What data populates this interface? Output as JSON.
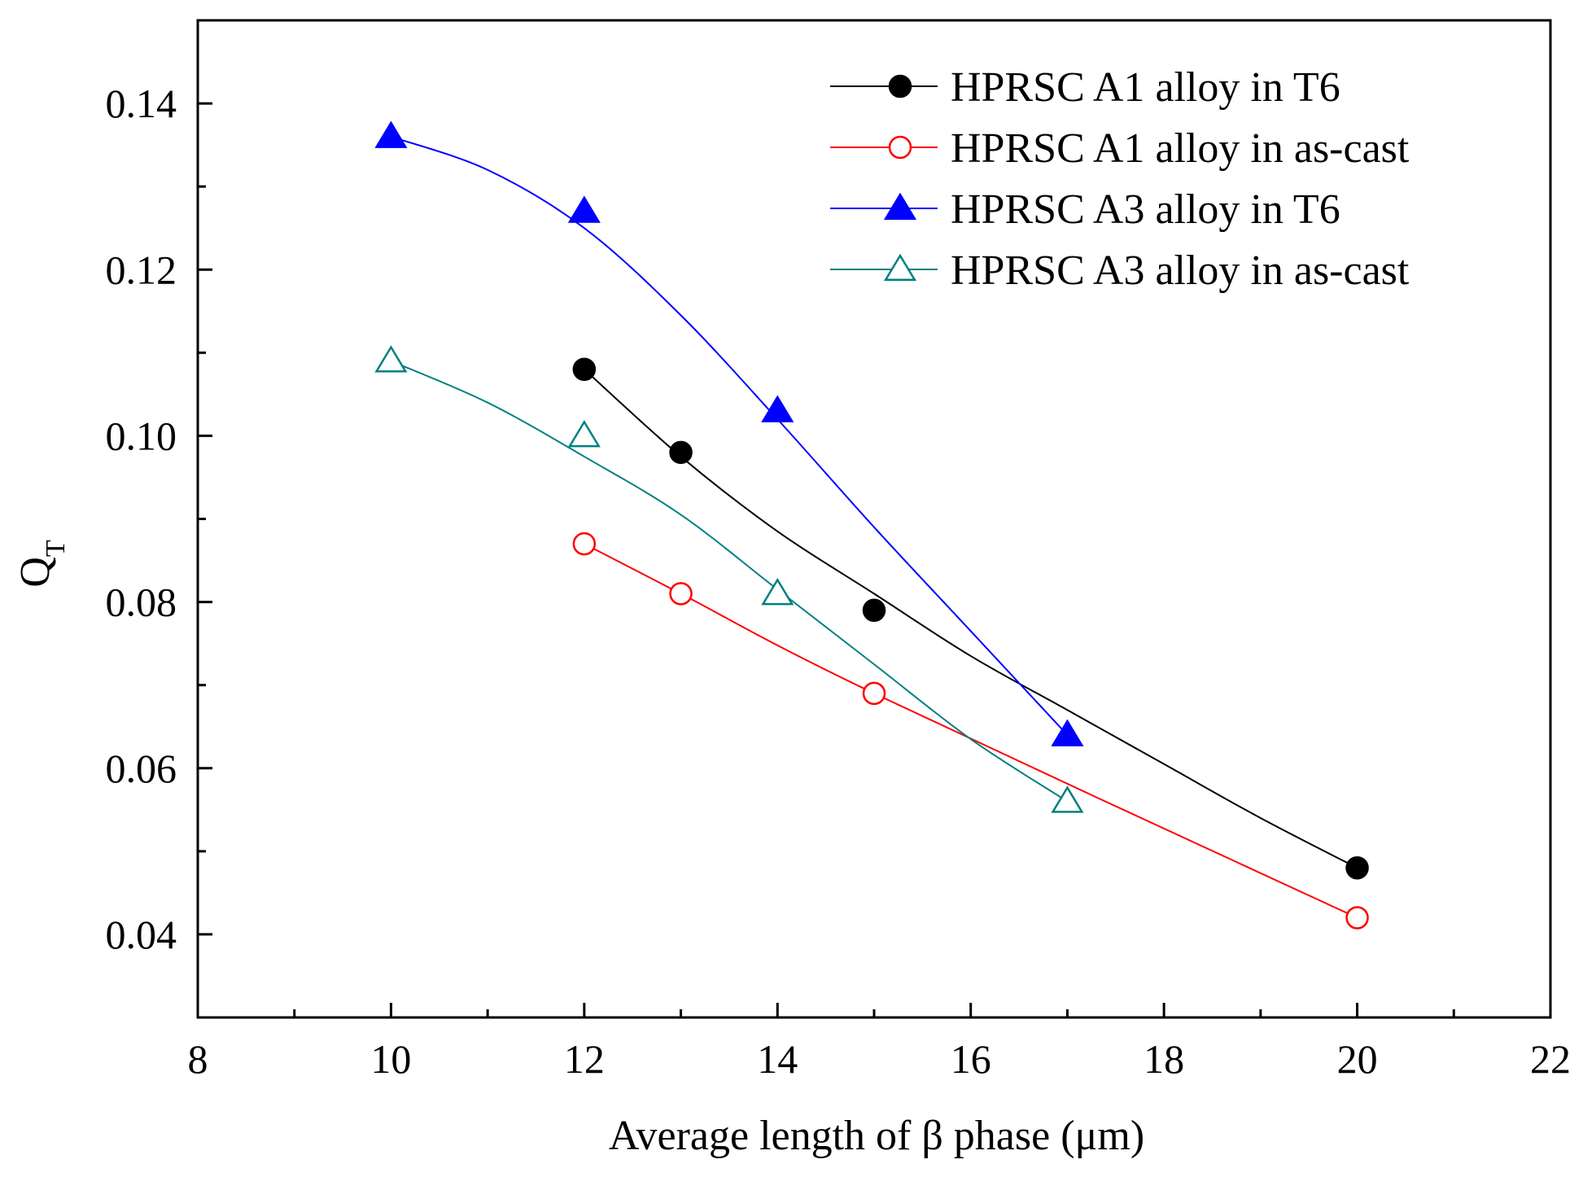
{
  "chart_data": {
    "type": "line",
    "title": "",
    "xlabel": "Average length of β  phase (μm)",
    "ylabel": "Q",
    "ylabel_subscript": "T",
    "xlim": [
      8,
      22
    ],
    "ylim": [
      0.03,
      0.15
    ],
    "x_major_ticks": [
      8,
      10,
      12,
      14,
      16,
      18,
      20,
      22
    ],
    "x_tick_labels": [
      "8",
      "10",
      "12",
      "14",
      "16",
      "18",
      "20",
      "22"
    ],
    "y_major_ticks": [
      0.04,
      0.06,
      0.08,
      0.1,
      0.12,
      0.14
    ],
    "y_tick_labels": [
      "0.04",
      "0.06",
      "0.08",
      "0.10",
      "0.12",
      "0.14"
    ],
    "grid": false,
    "legend_position": "top-right",
    "series": [
      {
        "name": "HPRSC A1 alloy in T6",
        "color": "#000000",
        "marker": "circle",
        "filled": true,
        "x": [
          12,
          13,
          15,
          20
        ],
        "y": [
          0.108,
          0.098,
          0.079,
          0.048
        ],
        "fit_x": [
          12,
          13,
          14,
          15,
          16,
          17,
          18,
          19,
          20
        ],
        "fit_y": [
          0.108,
          0.0975,
          0.0885,
          0.081,
          0.0735,
          0.067,
          0.0605,
          0.054,
          0.048
        ]
      },
      {
        "name": "HPRSC A1 alloy in as-cast",
        "color": "#ff0000",
        "marker": "circle",
        "filled": false,
        "x": [
          12,
          13,
          15,
          20
        ],
        "y": [
          0.087,
          0.081,
          0.069,
          0.042
        ],
        "fit_x": [
          12,
          13,
          15,
          20
        ],
        "fit_y": [
          0.087,
          0.081,
          0.069,
          0.042
        ]
      },
      {
        "name": "HPRSC A3 alloy in T6",
        "color": "#0000ff",
        "marker": "triangle",
        "filled": true,
        "x": [
          10,
          12,
          14,
          17
        ],
        "y": [
          0.136,
          0.127,
          0.103,
          0.064
        ],
        "fit_x": [
          10,
          11,
          12,
          13,
          14,
          15,
          16,
          17
        ],
        "fit_y": [
          0.136,
          0.132,
          0.125,
          0.1145,
          0.102,
          0.089,
          0.0765,
          0.064
        ]
      },
      {
        "name": "HPRSC A3 alloy in as-cast",
        "color": "#008080",
        "marker": "triangle",
        "filled": false,
        "x": [
          10,
          12,
          14,
          17
        ],
        "y": [
          0.109,
          0.1,
          0.081,
          0.056
        ],
        "fit_x": [
          10,
          11,
          12,
          13,
          14,
          15,
          16,
          17
        ],
        "fit_y": [
          0.109,
          0.104,
          0.0975,
          0.0905,
          0.0815,
          0.0725,
          0.0635,
          0.056
        ]
      }
    ]
  }
}
